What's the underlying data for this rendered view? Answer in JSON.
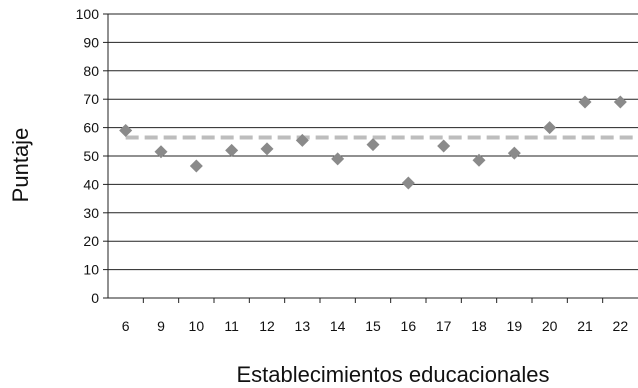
{
  "chart_data": {
    "type": "scatter",
    "xlabel": "Establecimientos educacionales",
    "ylabel": "Puntaje",
    "categories": [
      "6",
      "9",
      "10",
      "11",
      "12",
      "13",
      "14",
      "15",
      "16",
      "17",
      "18",
      "19",
      "20",
      "21",
      "22"
    ],
    "values": [
      59,
      51.5,
      46.5,
      52,
      52.5,
      55.5,
      49,
      54,
      40.5,
      53.5,
      48.5,
      51,
      60,
      69,
      69
    ],
    "ylim": [
      0,
      100
    ],
    "yticks": [
      "0",
      "10",
      "20",
      "30",
      "40",
      "50",
      "60",
      "70",
      "80",
      "90",
      "100"
    ],
    "reference_line": {
      "value": 56.5,
      "style": "dashed",
      "color": "#bdbdbd"
    },
    "grid": true,
    "marker_color": "#8a8a8a"
  }
}
